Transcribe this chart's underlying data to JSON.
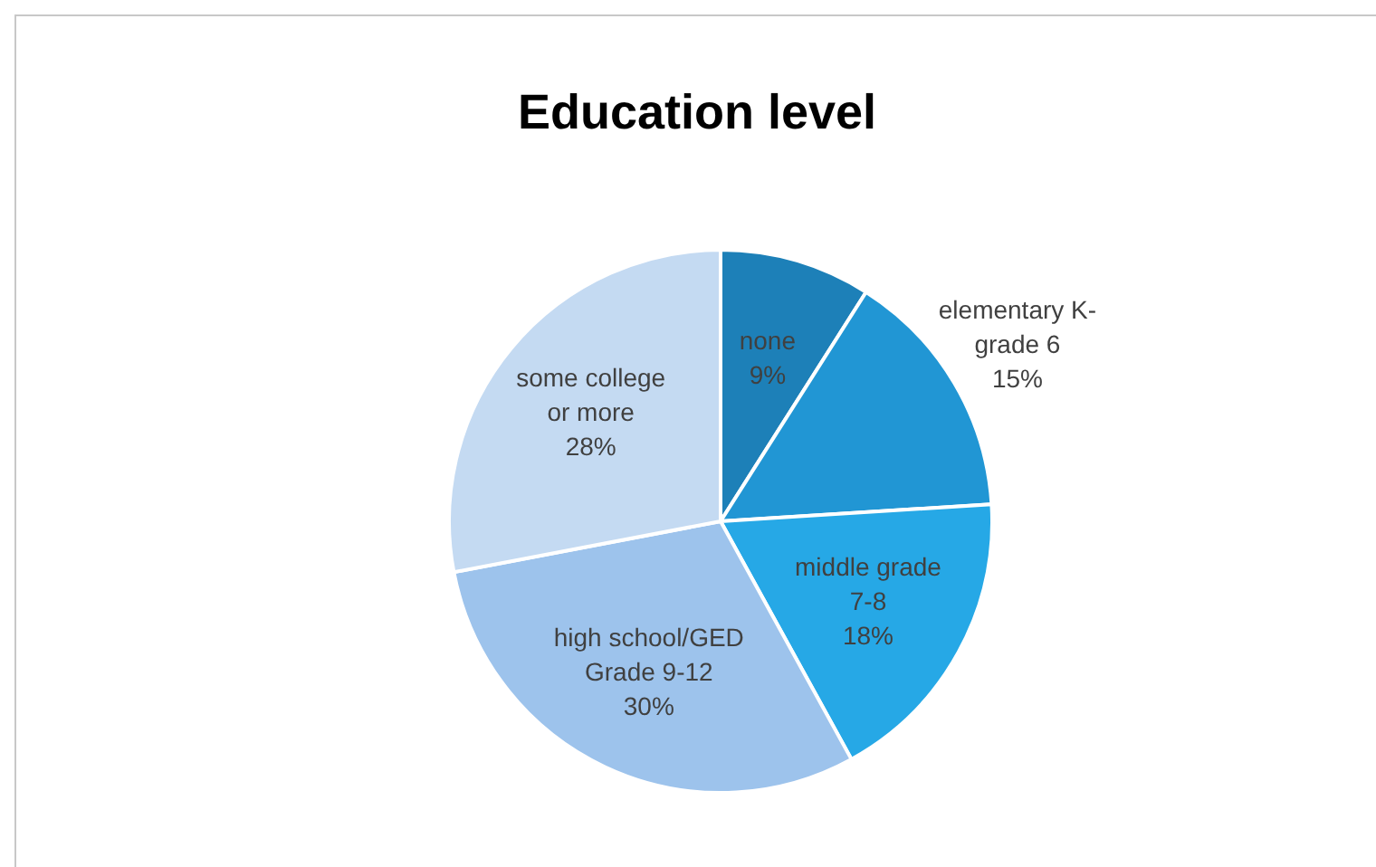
{
  "chart_data": {
    "type": "pie",
    "title": "Education level",
    "categories": [
      "none",
      "elementary K-\ngrade 6",
      "middle grade\n7-8",
      "high school/GED\nGrade 9-12",
      "some college\nor more"
    ],
    "values": [
      9,
      15,
      18,
      30,
      28
    ],
    "colors": [
      "#1d80b8",
      "#2196d4",
      "#26a8e6",
      "#9dc3ec",
      "#c4daf2"
    ],
    "value_labels": [
      "9%",
      "15%",
      "18%",
      "30%",
      "28%"
    ],
    "legend": false
  }
}
